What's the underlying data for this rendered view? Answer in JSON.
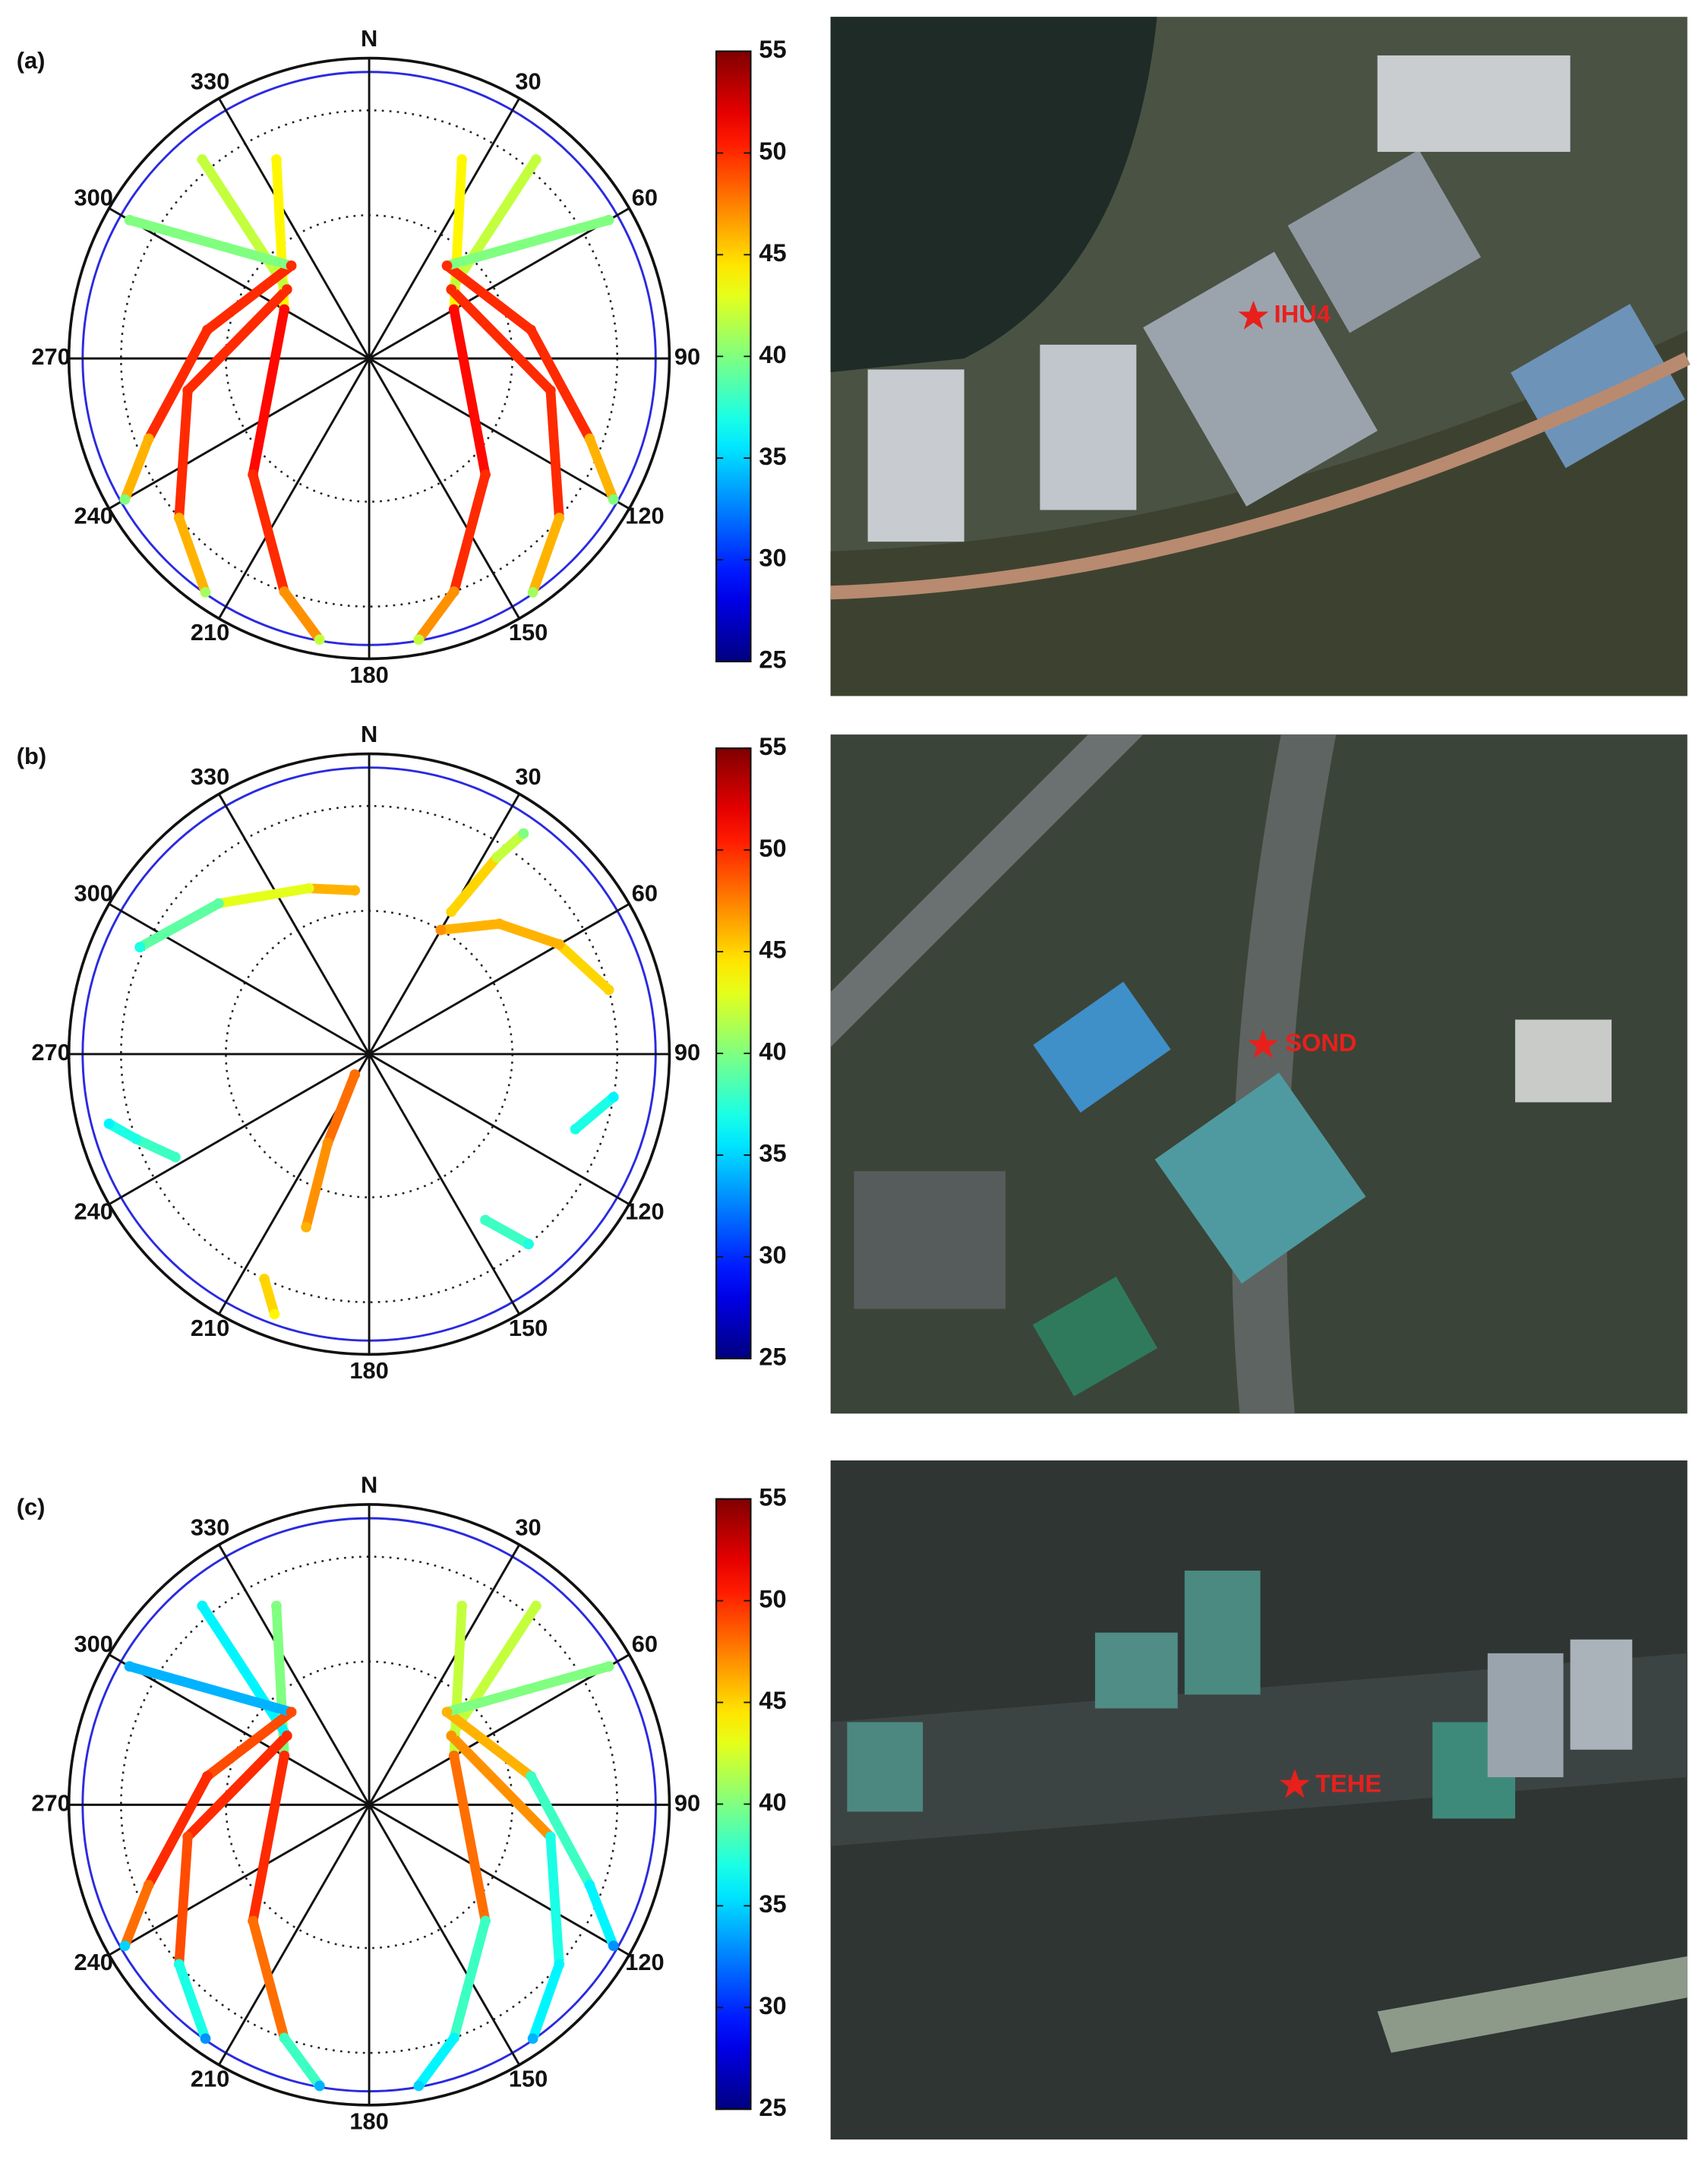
{
  "panel_labels": [
    "(a)",
    "(b)",
    "(c)"
  ],
  "stations": [
    "IHU4",
    "SOND",
    "TEHE"
  ],
  "chart_data": [
    {
      "type": "polar_scatter",
      "thetaticks": [
        {
          "value": 0,
          "label": "N"
        },
        30,
        60,
        90,
        120,
        150,
        180,
        210,
        240,
        270,
        300,
        330
      ],
      "rlim": [
        0,
        90
      ],
      "rticks": [
        30,
        60
      ],
      "clim": [
        25,
        55
      ],
      "cticks": [
        25,
        30,
        35,
        40,
        45,
        50,
        55
      ],
      "tracks": [
        {
          "azimuth": [
            190,
            200,
            225,
            300,
            335
          ],
          "elevation": [
            5,
            30,
            55,
            70,
            40
          ],
          "snr": [
            42,
            47,
            50,
            51,
            44
          ]
        },
        {
          "azimuth": [
            170,
            160,
            135,
            60,
            25
          ],
          "elevation": [
            5,
            30,
            55,
            70,
            40
          ],
          "snr": [
            42,
            47,
            50,
            51,
            44
          ]
        },
        {
          "azimuth": [
            215,
            230,
            260,
            310,
            320
          ],
          "elevation": [
            5,
            30,
            50,
            68,
            25
          ],
          "snr": [
            41,
            46,
            50,
            50,
            42
          ]
        },
        {
          "azimuth": [
            145,
            130,
            100,
            50,
            40
          ],
          "elevation": [
            5,
            30,
            50,
            68,
            25
          ],
          "snr": [
            41,
            46,
            50,
            50,
            42
          ]
        },
        {
          "azimuth": [
            240,
            250,
            280,
            320,
            300
          ],
          "elevation": [
            10,
            35,
            55,
            65,
            15
          ],
          "snr": [
            40,
            46,
            50,
            50,
            40
          ]
        },
        {
          "azimuth": [
            120,
            110,
            80,
            40,
            60
          ],
          "elevation": [
            10,
            35,
            55,
            65,
            15
          ],
          "snr": [
            40,
            46,
            50,
            50,
            40
          ]
        }
      ]
    },
    {
      "type": "polar_scatter",
      "thetaticks": [
        {
          "value": 0,
          "label": "N"
        },
        30,
        60,
        90,
        120,
        150,
        180,
        210,
        240,
        270,
        300,
        330
      ],
      "rlim": [
        0,
        90
      ],
      "rticks": [
        30,
        60
      ],
      "clim": [
        25,
        55
      ],
      "cticks": [
        25,
        30,
        35,
        40,
        45,
        50,
        55
      ],
      "tracks": [
        {
          "azimuth": [
            295,
            315,
            340,
            355
          ],
          "elevation": [
            28,
            42,
            52,
            55
          ],
          "snr": [
            37,
            39,
            43,
            46
          ]
        },
        {
          "azimuth": [
            30,
            45,
            60,
            75
          ],
          "elevation": [
            60,
            50,
            40,
            30
          ],
          "snr": [
            47,
            46,
            46,
            45
          ]
        },
        {
          "azimuth": [
            35,
            33,
            30
          ],
          "elevation": [
            20,
            35,
            55
          ],
          "snr": [
            40,
            42,
            45
          ]
        },
        {
          "azimuth": [
            200,
            205,
            215
          ],
          "elevation": [
            50,
            70,
            85
          ],
          "snr": [
            46,
            47,
            48
          ]
        },
        {
          "azimuth": [
            255,
            250,
            242
          ],
          "elevation": [
            20,
            30,
            40
          ],
          "snr": [
            36,
            37,
            38
          ]
        },
        {
          "azimuth": [
            200,
            205
          ],
          "elevation": [
            15,
            30
          ],
          "snr": [
            44,
            45
          ]
        },
        {
          "azimuth": [
            140,
            145
          ],
          "elevation": [
            30,
            45
          ],
          "snr": [
            37,
            38
          ]
        },
        {
          "azimuth": [
            100,
            110
          ],
          "elevation": [
            30,
            40
          ],
          "snr": [
            36,
            37
          ]
        }
      ]
    },
    {
      "type": "polar_scatter",
      "thetaticks": [
        {
          "value": 0,
          "label": "N"
        },
        30,
        60,
        90,
        120,
        150,
        180,
        210,
        240,
        270,
        300,
        330
      ],
      "rlim": [
        0,
        90
      ],
      "rticks": [
        30,
        60
      ],
      "clim": [
        25,
        55
      ],
      "cticks": [
        25,
        30,
        35,
        40,
        45,
        50,
        55
      ],
      "tracks": [
        {
          "azimuth": [
            190,
            200,
            225,
            300,
            335
          ],
          "elevation": [
            5,
            30,
            55,
            70,
            40
          ],
          "snr": [
            34,
            38,
            48,
            50,
            40
          ]
        },
        {
          "azimuth": [
            170,
            160,
            135,
            60,
            25
          ],
          "elevation": [
            5,
            30,
            55,
            70,
            40
          ],
          "snr": [
            35,
            36,
            38,
            48,
            42
          ]
        },
        {
          "azimuth": [
            215,
            230,
            260,
            310,
            320
          ],
          "elevation": [
            5,
            30,
            50,
            68,
            25
          ],
          "snr": [
            33,
            37,
            49,
            50,
            36
          ]
        },
        {
          "azimuth": [
            145,
            130,
            100,
            50,
            40
          ],
          "elevation": [
            5,
            30,
            50,
            68,
            25
          ],
          "snr": [
            34,
            36,
            37,
            47,
            42
          ]
        },
        {
          "azimuth": [
            240,
            250,
            280,
            320,
            300
          ],
          "elevation": [
            10,
            35,
            55,
            65,
            15
          ],
          "snr": [
            35,
            48,
            50,
            49,
            34
          ]
        },
        {
          "azimuth": [
            120,
            110,
            80,
            40,
            60
          ],
          "elevation": [
            10,
            35,
            55,
            65,
            15
          ],
          "snr": [
            33,
            36,
            38,
            46,
            40
          ]
        }
      ]
    }
  ]
}
